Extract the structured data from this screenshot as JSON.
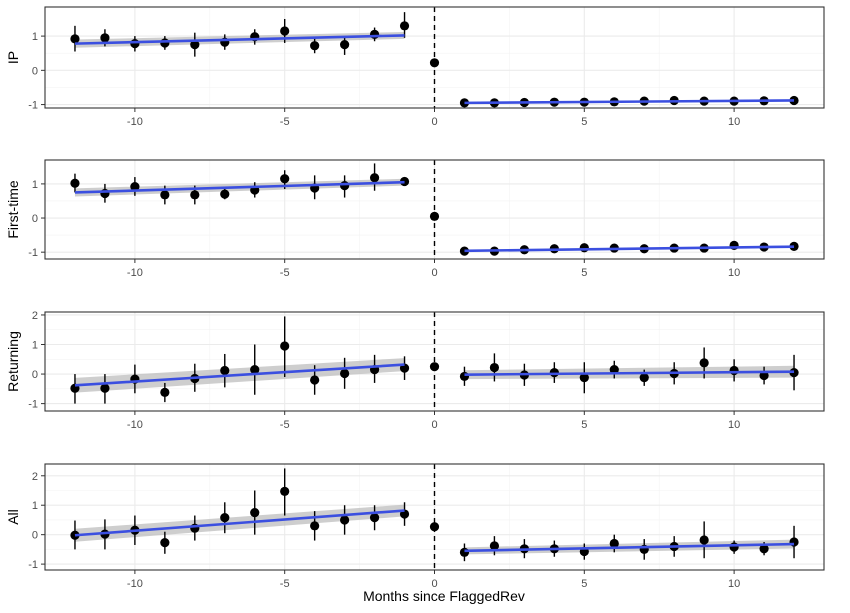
{
  "chart_data": {
    "type": "scatter",
    "xlabel": "Months since FlaggedRev",
    "xlim": [
      -13,
      13
    ],
    "xticks": [
      -10,
      -5,
      0,
      5,
      10
    ],
    "cutoff_line": {
      "x": 0,
      "style": "dashed"
    },
    "grid": true,
    "colors": {
      "points": "#000000",
      "fit_line": "#3b4fe0",
      "ci_band": "#bebebe",
      "panel_border": "#333333",
      "grid": "#ebebeb"
    },
    "panels": [
      {
        "name": "IP",
        "ylabel": "IP",
        "ylim": [
          -1.1,
          1.85
        ],
        "yticks": [
          -1,
          0,
          1
        ],
        "points": [
          {
            "x": -12,
            "y": 0.92,
            "lo": 0.55,
            "hi": 1.3
          },
          {
            "x": -11,
            "y": 0.95,
            "lo": 0.7,
            "hi": 1.2
          },
          {
            "x": -10,
            "y": 0.78,
            "lo": 0.55,
            "hi": 1.0
          },
          {
            "x": -9,
            "y": 0.8,
            "lo": 0.6,
            "hi": 1.0
          },
          {
            "x": -8,
            "y": 0.75,
            "lo": 0.4,
            "hi": 1.1
          },
          {
            "x": -7,
            "y": 0.82,
            "lo": 0.6,
            "hi": 1.05
          },
          {
            "x": -6,
            "y": 0.98,
            "lo": 0.75,
            "hi": 1.2
          },
          {
            "x": -5,
            "y": 1.15,
            "lo": 0.8,
            "hi": 1.5
          },
          {
            "x": -4,
            "y": 0.72,
            "lo": 0.5,
            "hi": 0.95
          },
          {
            "x": -3,
            "y": 0.75,
            "lo": 0.45,
            "hi": 1.0
          },
          {
            "x": -2,
            "y": 1.05,
            "lo": 0.85,
            "hi": 1.25
          },
          {
            "x": -1,
            "y": 1.3,
            "lo": 0.95,
            "hi": 1.7
          },
          {
            "x": 0,
            "y": 0.22,
            "lo": 0.22,
            "hi": 0.22
          },
          {
            "x": 1,
            "y": -0.95,
            "lo": -0.98,
            "hi": -0.92
          },
          {
            "x": 2,
            "y": -0.95,
            "lo": -0.98,
            "hi": -0.92
          },
          {
            "x": 3,
            "y": -0.94,
            "lo": -0.97,
            "hi": -0.91
          },
          {
            "x": 4,
            "y": -0.93,
            "lo": -0.96,
            "hi": -0.9
          },
          {
            "x": 5,
            "y": -0.93,
            "lo": -0.96,
            "hi": -0.9
          },
          {
            "x": 6,
            "y": -0.92,
            "lo": -0.95,
            "hi": -0.89
          },
          {
            "x": 7,
            "y": -0.9,
            "lo": -0.93,
            "hi": -0.87
          },
          {
            "x": 8,
            "y": -0.88,
            "lo": -0.91,
            "hi": -0.85
          },
          {
            "x": 9,
            "y": -0.9,
            "lo": -0.93,
            "hi": -0.87
          },
          {
            "x": 10,
            "y": -0.9,
            "lo": -0.93,
            "hi": -0.87
          },
          {
            "x": 11,
            "y": -0.89,
            "lo": -0.92,
            "hi": -0.86
          },
          {
            "x": 12,
            "y": -0.88,
            "lo": -0.91,
            "hi": -0.85
          }
        ],
        "fits": [
          {
            "x": [
              -12,
              -1
            ],
            "y": [
              0.78,
              1.02
            ],
            "ci": [
              0.12,
              0.1
            ]
          },
          {
            "x": [
              1,
              12
            ],
            "y": [
              -0.95,
              -0.88
            ],
            "ci": [
              0.02,
              0.02
            ]
          }
        ]
      },
      {
        "name": "First-time",
        "ylabel": "First-time",
        "ylim": [
          -1.2,
          1.7
        ],
        "yticks": [
          -1,
          0,
          1
        ],
        "points": [
          {
            "x": -12,
            "y": 1.02,
            "lo": 0.75,
            "hi": 1.3
          },
          {
            "x": -11,
            "y": 0.72,
            "lo": 0.45,
            "hi": 1.0
          },
          {
            "x": -10,
            "y": 0.92,
            "lo": 0.65,
            "hi": 1.2
          },
          {
            "x": -9,
            "y": 0.68,
            "lo": 0.4,
            "hi": 0.95
          },
          {
            "x": -8,
            "y": 0.68,
            "lo": 0.4,
            "hi": 0.95
          },
          {
            "x": -7,
            "y": 0.7,
            "lo": 0.55,
            "hi": 0.85
          },
          {
            "x": -6,
            "y": 0.82,
            "lo": 0.6,
            "hi": 1.05
          },
          {
            "x": -5,
            "y": 1.15,
            "lo": 0.85,
            "hi": 1.4
          },
          {
            "x": -4,
            "y": 0.88,
            "lo": 0.55,
            "hi": 1.25
          },
          {
            "x": -3,
            "y": 0.95,
            "lo": 0.6,
            "hi": 1.25
          },
          {
            "x": -2,
            "y": 1.18,
            "lo": 0.8,
            "hi": 1.6
          },
          {
            "x": -1,
            "y": 1.07,
            "lo": 0.95,
            "hi": 1.2
          },
          {
            "x": 0,
            "y": 0.05,
            "lo": 0.05,
            "hi": 0.05
          },
          {
            "x": 1,
            "y": -0.97,
            "lo": -1.0,
            "hi": -0.94
          },
          {
            "x": 2,
            "y": -0.97,
            "lo": -1.0,
            "hi": -0.94
          },
          {
            "x": 3,
            "y": -0.93,
            "lo": -0.96,
            "hi": -0.9
          },
          {
            "x": 4,
            "y": -0.9,
            "lo": -0.93,
            "hi": -0.87
          },
          {
            "x": 5,
            "y": -0.87,
            "lo": -0.9,
            "hi": -0.84
          },
          {
            "x": 6,
            "y": -0.88,
            "lo": -0.91,
            "hi": -0.85
          },
          {
            "x": 7,
            "y": -0.9,
            "lo": -0.93,
            "hi": -0.87
          },
          {
            "x": 8,
            "y": -0.88,
            "lo": -0.91,
            "hi": -0.85
          },
          {
            "x": 9,
            "y": -0.88,
            "lo": -0.91,
            "hi": -0.85
          },
          {
            "x": 10,
            "y": -0.8,
            "lo": -0.83,
            "hi": -0.77
          },
          {
            "x": 11,
            "y": -0.85,
            "lo": -0.88,
            "hi": -0.82
          },
          {
            "x": 12,
            "y": -0.83,
            "lo": -0.86,
            "hi": -0.8
          }
        ],
        "fits": [
          {
            "x": [
              -12,
              -1
            ],
            "y": [
              0.75,
              1.05
            ],
            "ci": [
              0.12,
              0.1
            ]
          },
          {
            "x": [
              1,
              12
            ],
            "y": [
              -0.96,
              -0.84
            ],
            "ci": [
              0.02,
              0.02
            ]
          }
        ]
      },
      {
        "name": "Returning",
        "ylabel": "Returning",
        "ylim": [
          -1.25,
          2.1
        ],
        "yticks": [
          -1,
          0,
          1,
          2
        ],
        "points": [
          {
            "x": -12,
            "y": -0.48,
            "lo": -1.0,
            "hi": 0.0
          },
          {
            "x": -11,
            "y": -0.48,
            "lo": -1.0,
            "hi": 0.0
          },
          {
            "x": -10,
            "y": -0.17,
            "lo": -0.65,
            "hi": 0.32
          },
          {
            "x": -9,
            "y": -0.62,
            "lo": -0.95,
            "hi": -0.3
          },
          {
            "x": -8,
            "y": -0.15,
            "lo": -0.6,
            "hi": 0.35
          },
          {
            "x": -7,
            "y": 0.12,
            "lo": -0.45,
            "hi": 0.68
          },
          {
            "x": -6,
            "y": 0.15,
            "lo": -0.7,
            "hi": 1.0
          },
          {
            "x": -5,
            "y": 0.95,
            "lo": -0.1,
            "hi": 1.95
          },
          {
            "x": -4,
            "y": -0.2,
            "lo": -0.7,
            "hi": 0.3
          },
          {
            "x": -3,
            "y": 0.02,
            "lo": -0.5,
            "hi": 0.55
          },
          {
            "x": -2,
            "y": 0.15,
            "lo": -0.3,
            "hi": 0.65
          },
          {
            "x": -1,
            "y": 0.2,
            "lo": -0.2,
            "hi": 0.6
          },
          {
            "x": 0,
            "y": 0.25,
            "lo": 0.25,
            "hi": 0.25
          },
          {
            "x": 1,
            "y": -0.08,
            "lo": -0.4,
            "hi": 0.25
          },
          {
            "x": 2,
            "y": 0.22,
            "lo": -0.25,
            "hi": 0.7
          },
          {
            "x": 3,
            "y": -0.03,
            "lo": -0.4,
            "hi": 0.35
          },
          {
            "x": 4,
            "y": 0.05,
            "lo": -0.3,
            "hi": 0.4
          },
          {
            "x": 5,
            "y": -0.12,
            "lo": -0.65,
            "hi": 0.4
          },
          {
            "x": 6,
            "y": 0.15,
            "lo": -0.15,
            "hi": 0.45
          },
          {
            "x": 7,
            "y": -0.12,
            "lo": -0.4,
            "hi": 0.15
          },
          {
            "x": 8,
            "y": 0.02,
            "lo": -0.35,
            "hi": 0.4
          },
          {
            "x": 9,
            "y": 0.38,
            "lo": -0.15,
            "hi": 0.9
          },
          {
            "x": 10,
            "y": 0.12,
            "lo": -0.25,
            "hi": 0.5
          },
          {
            "x": 11,
            "y": -0.05,
            "lo": -0.35,
            "hi": 0.25
          },
          {
            "x": 12,
            "y": 0.05,
            "lo": -0.55,
            "hi": 0.65
          }
        ],
        "fits": [
          {
            "x": [
              -12,
              -1
            ],
            "y": [
              -0.38,
              0.32
            ],
            "ci": [
              0.25,
              0.22
            ]
          },
          {
            "x": [
              1,
              12
            ],
            "y": [
              -0.02,
              0.08
            ],
            "ci": [
              0.15,
              0.2
            ]
          }
        ]
      },
      {
        "name": "All",
        "ylabel": "All",
        "ylim": [
          -1.2,
          2.4
        ],
        "yticks": [
          -1,
          0,
          1,
          2
        ],
        "points": [
          {
            "x": -12,
            "y": -0.02,
            "lo": -0.5,
            "hi": 0.48
          },
          {
            "x": -11,
            "y": 0.02,
            "lo": -0.5,
            "hi": 0.52
          },
          {
            "x": -10,
            "y": 0.15,
            "lo": -0.35,
            "hi": 0.65
          },
          {
            "x": -9,
            "y": -0.27,
            "lo": -0.65,
            "hi": 0.1
          },
          {
            "x": -8,
            "y": 0.22,
            "lo": -0.2,
            "hi": 0.65
          },
          {
            "x": -7,
            "y": 0.58,
            "lo": 0.05,
            "hi": 1.1
          },
          {
            "x": -6,
            "y": 0.75,
            "lo": 0.0,
            "hi": 1.5
          },
          {
            "x": -5,
            "y": 1.47,
            "lo": 0.65,
            "hi": 2.25
          },
          {
            "x": -4,
            "y": 0.3,
            "lo": -0.2,
            "hi": 0.8
          },
          {
            "x": -3,
            "y": 0.5,
            "lo": 0.0,
            "hi": 1.0
          },
          {
            "x": -2,
            "y": 0.58,
            "lo": 0.15,
            "hi": 1.0
          },
          {
            "x": -1,
            "y": 0.7,
            "lo": 0.3,
            "hi": 1.1
          },
          {
            "x": 0,
            "y": 0.27,
            "lo": 0.27,
            "hi": 0.27
          },
          {
            "x": 1,
            "y": -0.6,
            "lo": -0.9,
            "hi": -0.3
          },
          {
            "x": 2,
            "y": -0.38,
            "lo": -0.7,
            "hi": -0.05
          },
          {
            "x": 3,
            "y": -0.48,
            "lo": -0.8,
            "hi": -0.15
          },
          {
            "x": 4,
            "y": -0.48,
            "lo": -0.75,
            "hi": -0.2
          },
          {
            "x": 5,
            "y": -0.57,
            "lo": -0.85,
            "hi": -0.3
          },
          {
            "x": 6,
            "y": -0.3,
            "lo": -0.6,
            "hi": 0.0
          },
          {
            "x": 7,
            "y": -0.5,
            "lo": -0.85,
            "hi": -0.15
          },
          {
            "x": 8,
            "y": -0.4,
            "lo": -0.75,
            "hi": -0.05
          },
          {
            "x": 9,
            "y": -0.18,
            "lo": -0.8,
            "hi": 0.45
          },
          {
            "x": 10,
            "y": -0.42,
            "lo": -0.65,
            "hi": -0.2
          },
          {
            "x": 11,
            "y": -0.48,
            "lo": -0.7,
            "hi": -0.25
          },
          {
            "x": 12,
            "y": -0.25,
            "lo": -0.8,
            "hi": 0.3
          }
        ],
        "fits": [
          {
            "x": [
              -12,
              -1
            ],
            "y": [
              -0.02,
              0.82
            ],
            "ci": [
              0.22,
              0.2
            ]
          },
          {
            "x": [
              1,
              12
            ],
            "y": [
              -0.55,
              -0.32
            ],
            "ci": [
              0.12,
              0.15
            ]
          }
        ]
      }
    ]
  }
}
